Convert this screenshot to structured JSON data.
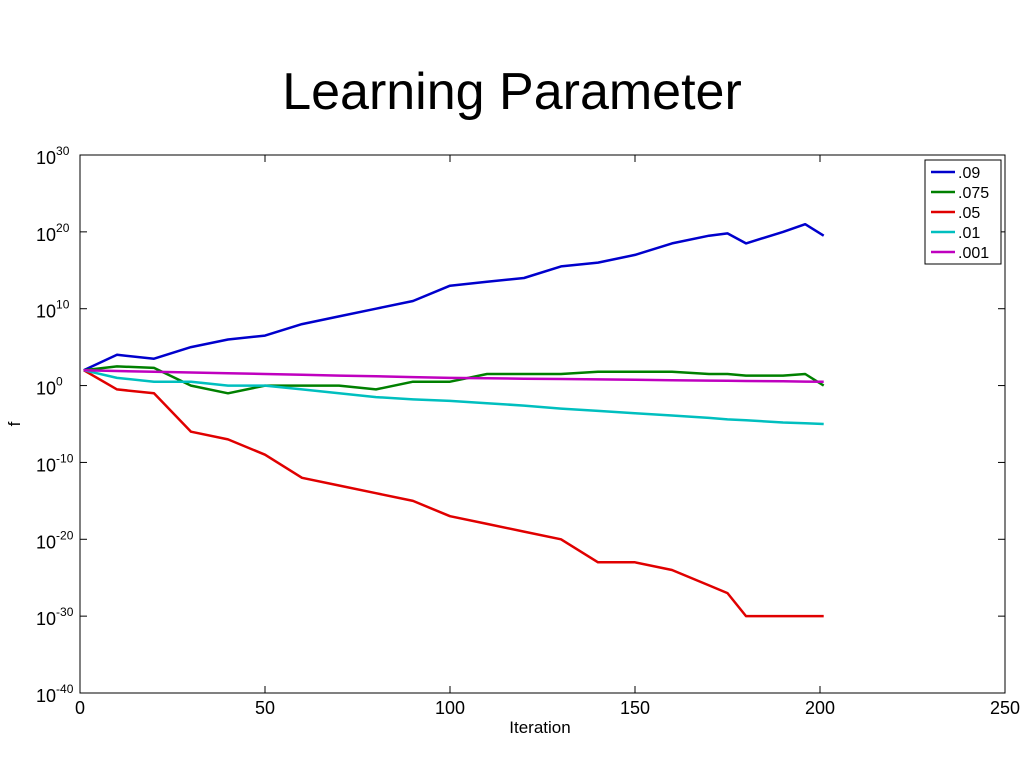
{
  "page": {
    "title": "Learning Parameter"
  },
  "chart_data": {
    "type": "line",
    "title": "",
    "xlabel": "Iteration",
    "ylabel": "f",
    "xlim": [
      0,
      250
    ],
    "ylim": [
      -40,
      30
    ],
    "yscale": "log",
    "y_values_are_log10": true,
    "grid": false,
    "legend_position": "top-right",
    "x_ticks": [
      0,
      50,
      100,
      150,
      200,
      250
    ],
    "x_tick_labels": [
      "0",
      "50",
      "100",
      "150",
      "200",
      "250"
    ],
    "y_ticks": [
      30,
      20,
      10,
      0,
      -10,
      -20,
      -30,
      -40
    ],
    "y_tick_base": "10",
    "y_tick_exponents": [
      "30",
      "20",
      "10",
      "0",
      "-10",
      "-20",
      "-30",
      "-40"
    ],
    "x": [
      1,
      10,
      20,
      30,
      40,
      50,
      60,
      70,
      80,
      90,
      100,
      110,
      120,
      130,
      140,
      150,
      160,
      170,
      175,
      180,
      190,
      196,
      201
    ],
    "series": [
      {
        "name": ".09",
        "color": "#0000CC",
        "values": [
          2,
          4,
          3.5,
          5,
          6,
          6.5,
          8,
          9,
          10,
          11,
          13,
          13.5,
          14,
          15.5,
          16,
          17,
          18.5,
          19.5,
          19.8,
          18.5,
          20,
          21,
          19.5
        ]
      },
      {
        "name": ".075",
        "color": "#008000",
        "values": [
          2,
          2.5,
          2.3,
          0,
          -1,
          0,
          0,
          0,
          -0.5,
          0.5,
          0.5,
          1.5,
          1.5,
          1.5,
          1.8,
          1.8,
          1.8,
          1.5,
          1.5,
          1.3,
          1.3,
          1.5,
          0
        ]
      },
      {
        "name": ".05",
        "color": "#E00000",
        "values": [
          2,
          -0.5,
          -1,
          -6,
          -7,
          -9,
          -12,
          -13,
          -14,
          -15,
          -17,
          -18,
          -19,
          -20,
          -23,
          -23,
          -24,
          -26,
          -27,
          -30,
          -30,
          -30,
          -30
        ]
      },
      {
        "name": ".01",
        "color": "#00BFBF",
        "values": [
          2,
          1,
          0.5,
          0.5,
          0,
          0,
          -0.5,
          -1,
          -1.5,
          -1.8,
          -2,
          -2.3,
          -2.6,
          -3,
          -3.3,
          -3.6,
          -3.9,
          -4.2,
          -4.4,
          -4.5,
          -4.8,
          -4.9,
          -5
        ]
      },
      {
        "name": ".001",
        "color": "#BF00BF",
        "values": [
          2,
          1.9,
          1.8,
          1.7,
          1.6,
          1.5,
          1.4,
          1.3,
          1.2,
          1.1,
          1.0,
          0.95,
          0.9,
          0.85,
          0.8,
          0.75,
          0.7,
          0.65,
          0.62,
          0.6,
          0.55,
          0.52,
          0.5
        ]
      }
    ]
  }
}
